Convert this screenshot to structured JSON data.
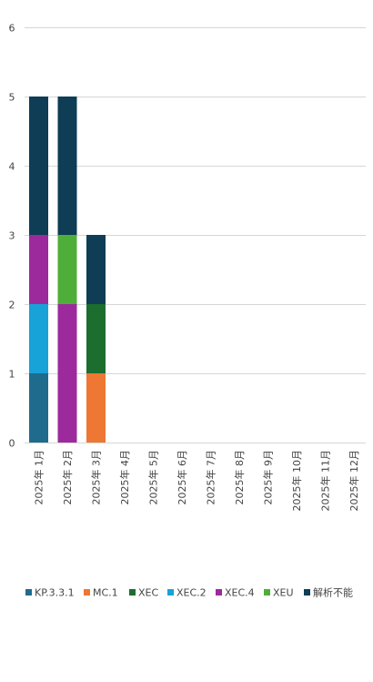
{
  "chart_data": {
    "type": "bar",
    "stacked": true,
    "categories": [
      "2025年 1月",
      "2025年 2月",
      "2025年 3月",
      "2025年 4月",
      "2025年 5月",
      "2025年 6月",
      "2025年 7月",
      "2025年 8月",
      "2025年 9月",
      "2025年 10月",
      "2025年 11月",
      "2025年 12月"
    ],
    "series": [
      {
        "name": "KP.3.3.1",
        "color": "#1f6b8e",
        "values": [
          1,
          0,
          0,
          0,
          0,
          0,
          0,
          0,
          0,
          0,
          0,
          0
        ]
      },
      {
        "name": "MC.1",
        "color": "#ee7733",
        "values": [
          0,
          0,
          1,
          0,
          0,
          0,
          0,
          0,
          0,
          0,
          0,
          0
        ]
      },
      {
        "name": "XEC",
        "color": "#1b6e2e",
        "values": [
          0,
          0,
          1,
          0,
          0,
          0,
          0,
          0,
          0,
          0,
          0,
          0
        ]
      },
      {
        "name": "XEC.2",
        "color": "#17a2d8",
        "values": [
          1,
          0,
          0,
          0,
          0,
          0,
          0,
          0,
          0,
          0,
          0,
          0
        ]
      },
      {
        "name": "XEC.4",
        "color": "#9c2a9c",
        "values": [
          1,
          2,
          0,
          0,
          0,
          0,
          0,
          0,
          0,
          0,
          0,
          0
        ]
      },
      {
        "name": "XEU",
        "color": "#4fae3a",
        "values": [
          0,
          1,
          0,
          0,
          0,
          0,
          0,
          0,
          0,
          0,
          0,
          0
        ]
      },
      {
        "name": "解析不能",
        "color": "#0e3d55",
        "values": [
          2,
          2,
          1,
          0,
          0,
          0,
          0,
          0,
          0,
          0,
          0,
          0
        ]
      }
    ],
    "stack_order": [
      "KP.3.3.1",
      "XEC.2",
      "MC.1",
      "XEC",
      "XEC.4",
      "XEU",
      "解析不能"
    ],
    "yticks": [
      0,
      1,
      2,
      3,
      4,
      5,
      6
    ],
    "ylim": [
      0,
      6
    ],
    "grid": true,
    "legend_position": "bottom"
  }
}
